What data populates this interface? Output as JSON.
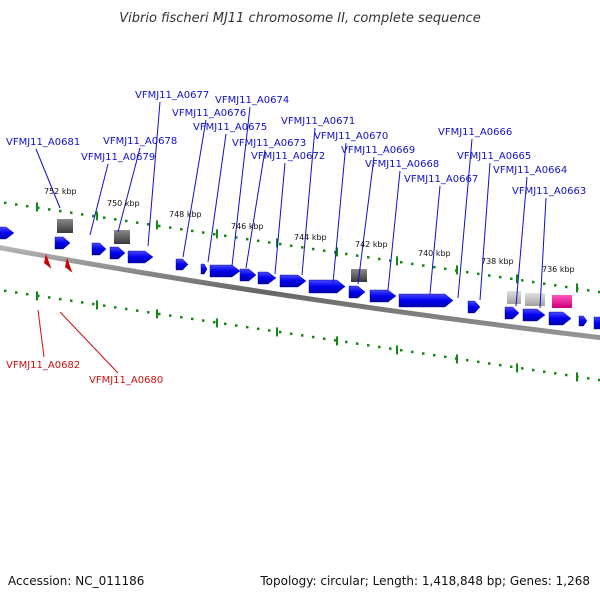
{
  "title": "Vibrio fischeri MJ11 chromosome II, complete sequence",
  "footer": {
    "accession": "Accession: NC_011186",
    "summary": "Topology: circular; Length: 1,418,848 bp; Genes: 1,268"
  },
  "colors": {
    "forward_label": "#1010c8",
    "reverse_label": "#cc1010",
    "forward_gene": "#0000ee",
    "reverse_gene": "#cc0000",
    "tick": "#118811",
    "backbone": "#777777",
    "feature_dark": "#5a5a5a",
    "feature_light": "#bbbbbb",
    "feature_pink": "#ee1188"
  },
  "kbp_ticks": [
    "752 kbp",
    "750 kbp",
    "748 kbp",
    "746 kbp",
    "744 kbp",
    "742 kbp",
    "740 kbp",
    "738 kbp",
    "736 kbp"
  ],
  "forward_genes": [
    "VFMJ11_A0681",
    "VFMJ11_A0679",
    "VFMJ11_A0678",
    "VFMJ11_A0677",
    "VFMJ11_A0676",
    "VFMJ11_A0675",
    "VFMJ11_A0674",
    "VFMJ11_A0673",
    "VFMJ11_A0672",
    "VFMJ11_A0671",
    "VFMJ11_A0670",
    "VFMJ11_A0669",
    "VFMJ11_A0668",
    "VFMJ11_A0667",
    "VFMJ11_A0666",
    "VFMJ11_A0665",
    "VFMJ11_A0664",
    "VFMJ11_A0663"
  ],
  "reverse_genes": [
    "VFMJ11_A0682",
    "VFMJ11_A0680"
  ]
}
